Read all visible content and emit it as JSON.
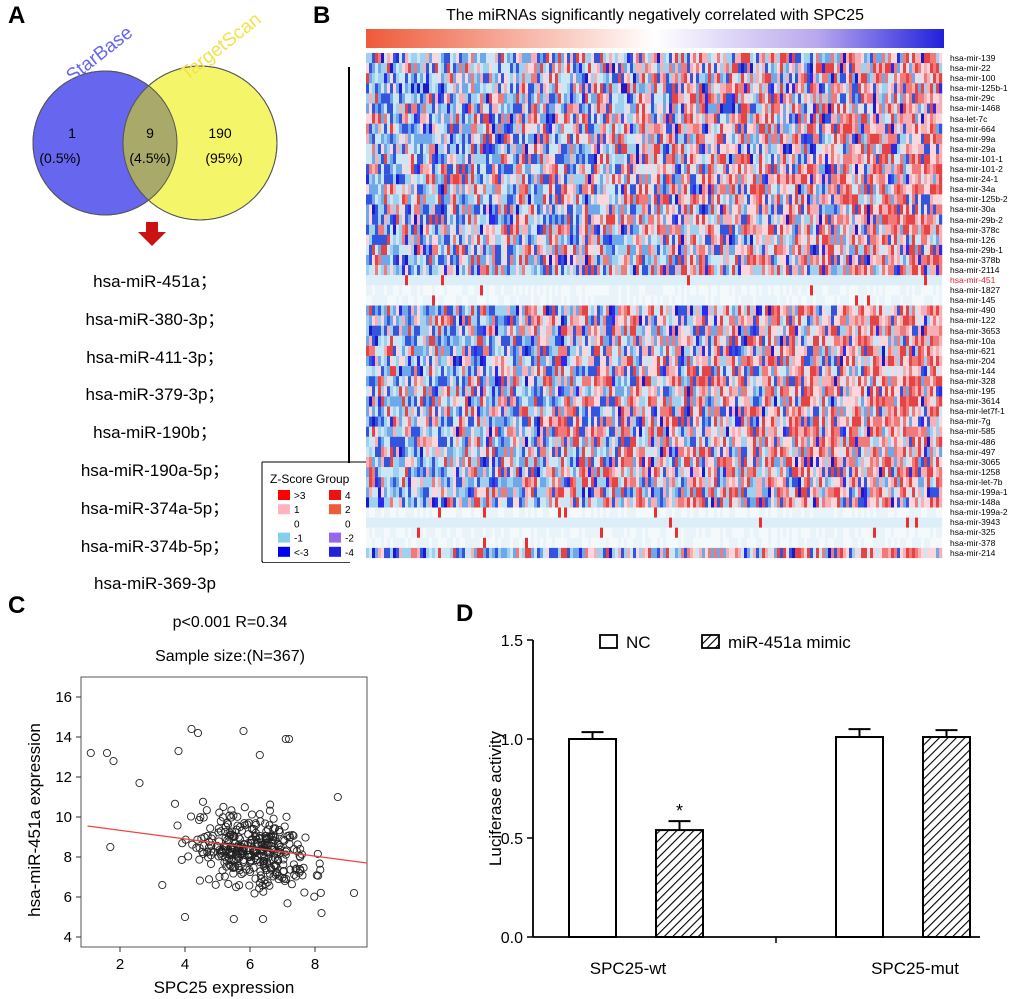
{
  "panels": {
    "a": "A",
    "b": "B",
    "c": "C",
    "d": "D"
  },
  "venn": {
    "left_label": "StarBase",
    "right_label": "TargetScan",
    "left_count": "1",
    "left_pct": "(0.5%)",
    "overlap_count": "9",
    "overlap_pct": "(4.5%)",
    "right_count": "190",
    "right_pct": "(95%)",
    "colors": {
      "left": "#6666ee",
      "right": "#f5f56a",
      "overlap": "#a9a96a",
      "arrow": "#cc1111"
    }
  },
  "overlap_mirnas": [
    "hsa-miR-451a；",
    "hsa-miR-380-3p；",
    "hsa-miR-411-3p；",
    "hsa-miR-379-3p；",
    "hsa-miR-190b；",
    "hsa-miR-190a-5p；",
    "hsa-miR-374a-5p；",
    "hsa-miR-374b-5p；",
    "hsa-miR-369-3p"
  ],
  "heatmap": {
    "title": "The miRNAs significantly negatively correlated with SPC25",
    "rows": [
      "hsa-mir-139",
      "hsa-mir-22",
      "hsa-mir-100",
      "hsa-mir-125b-1",
      "hsa-mir-29c",
      "hsa-mir-1468",
      "hsa-let-7c",
      "hsa-mir-664",
      "hsa-mir-99a",
      "hsa-mir-29a",
      "hsa-mir-101-1",
      "hsa-mir-101-2",
      "hsa-mir-24-1",
      "hsa-mir-34a",
      "hsa-mir-125b-2",
      "hsa-mir-30a",
      "hsa-mir-29b-2",
      "hsa-mir-378c",
      "hsa-mir-126",
      "hsa-mir-29b-1",
      "hsa-mir-378b",
      "hsa-mir-2114",
      "hsa-mir-451",
      "hsa-mir-1827",
      "hsa-mir-145",
      "hsa-mir-490",
      "hsa-mir-122",
      "hsa-mir-3653",
      "hsa-mir-10a",
      "hsa-mir-621",
      "hsa-mir-204",
      "hsa-mir-144",
      "hsa-mir-328",
      "hsa-mir-195",
      "hsa-mir-3614",
      "hsa-mir-let7f-1",
      "hsa-mir-7g",
      "hsa-mir-585",
      "hsa-mir-486",
      "hsa-mir-497",
      "hsa-mir-3065",
      "hsa-mir-1258",
      "hsa-mir-let-7b",
      "hsa-mir-199a-1",
      "hsa-mir-148a",
      "hsa-mir-199a-2",
      "hsa-mir-3943",
      "hsa-mir-325",
      "hsa-mir-378",
      "hsa-mir-214"
    ],
    "highlight_row": "hsa-mir-451",
    "highlight_color": "#e8202a",
    "legend": {
      "title": "Z-Score Group",
      "left": [
        {
          "label": ">3",
          "color": "#ff0000"
        },
        {
          "label": "1",
          "color": "#ffb3c1"
        },
        {
          "label": "0",
          "color": "#ffffff"
        },
        {
          "label": "-1",
          "color": "#87ceeb"
        },
        {
          "label": "<-3",
          "color": "#0000ee"
        }
      ],
      "right": [
        {
          "label": "4",
          "color": "#ee1111"
        },
        {
          "label": "2",
          "color": "#ee5a3a"
        },
        {
          "label": "0",
          "color": "#ffffff"
        },
        {
          "label": "-2",
          "color": "#9966ee"
        },
        {
          "label": "-4",
          "color": "#2222dd"
        }
      ]
    }
  },
  "chart_data": [
    {
      "type": "scatter",
      "title": "p<0.001 R=0.34",
      "subtitle": "Sample size:(N=367)",
      "xlabel": "SPC25 expression",
      "ylabel": "hsa-miR-451a expression",
      "xlim": [
        0.8,
        9.6
      ],
      "ylim": [
        3.5,
        17
      ],
      "xticks": [
        2,
        4,
        6,
        8
      ],
      "yticks": [
        4,
        6,
        8,
        10,
        12,
        14,
        16
      ],
      "regression": {
        "x": [
          1.0,
          9.6
        ],
        "y": [
          9.55,
          7.7
        ],
        "color": "#ee4444"
      },
      "n_points": 367,
      "sample_points": [
        [
          1.1,
          13.2
        ],
        [
          1.6,
          13.2
        ],
        [
          1.8,
          12.8
        ],
        [
          1.7,
          8.5
        ],
        [
          2.6,
          11.7
        ],
        [
          3.8,
          13.3
        ],
        [
          4.2,
          14.4
        ],
        [
          4.4,
          14.2
        ],
        [
          5.8,
          14.3
        ],
        [
          6.3,
          13.1
        ],
        [
          7.1,
          13.9
        ],
        [
          7.2,
          13.9
        ],
        [
          4.0,
          5.0
        ],
        [
          5.5,
          4.9
        ],
        [
          6.4,
          4.9
        ],
        [
          8.2,
          5.2
        ],
        [
          9.2,
          6.2
        ],
        [
          3.3,
          6.6
        ],
        [
          8.7,
          11.0
        ]
      ]
    },
    {
      "type": "bar",
      "ylabel": "Luciferase activity",
      "categories": [
        "SPC25-wt",
        "SPC25-mut"
      ],
      "ylim": [
        0.0,
        1.5
      ],
      "yticks": [
        "0.0",
        "0.5",
        "1.0",
        "1.5"
      ],
      "series": [
        {
          "name": "NC",
          "values": [
            1.0,
            1.01
          ],
          "errors": [
            0.035,
            0.04
          ],
          "fill": "white"
        },
        {
          "name": "miR-451a mimic",
          "values": [
            0.54,
            1.01
          ],
          "errors": [
            0.045,
            0.035
          ],
          "fill": "hatched"
        }
      ],
      "annotations": [
        {
          "category": "SPC25-wt",
          "series": "miR-451a mimic",
          "text": "*"
        }
      ]
    }
  ]
}
